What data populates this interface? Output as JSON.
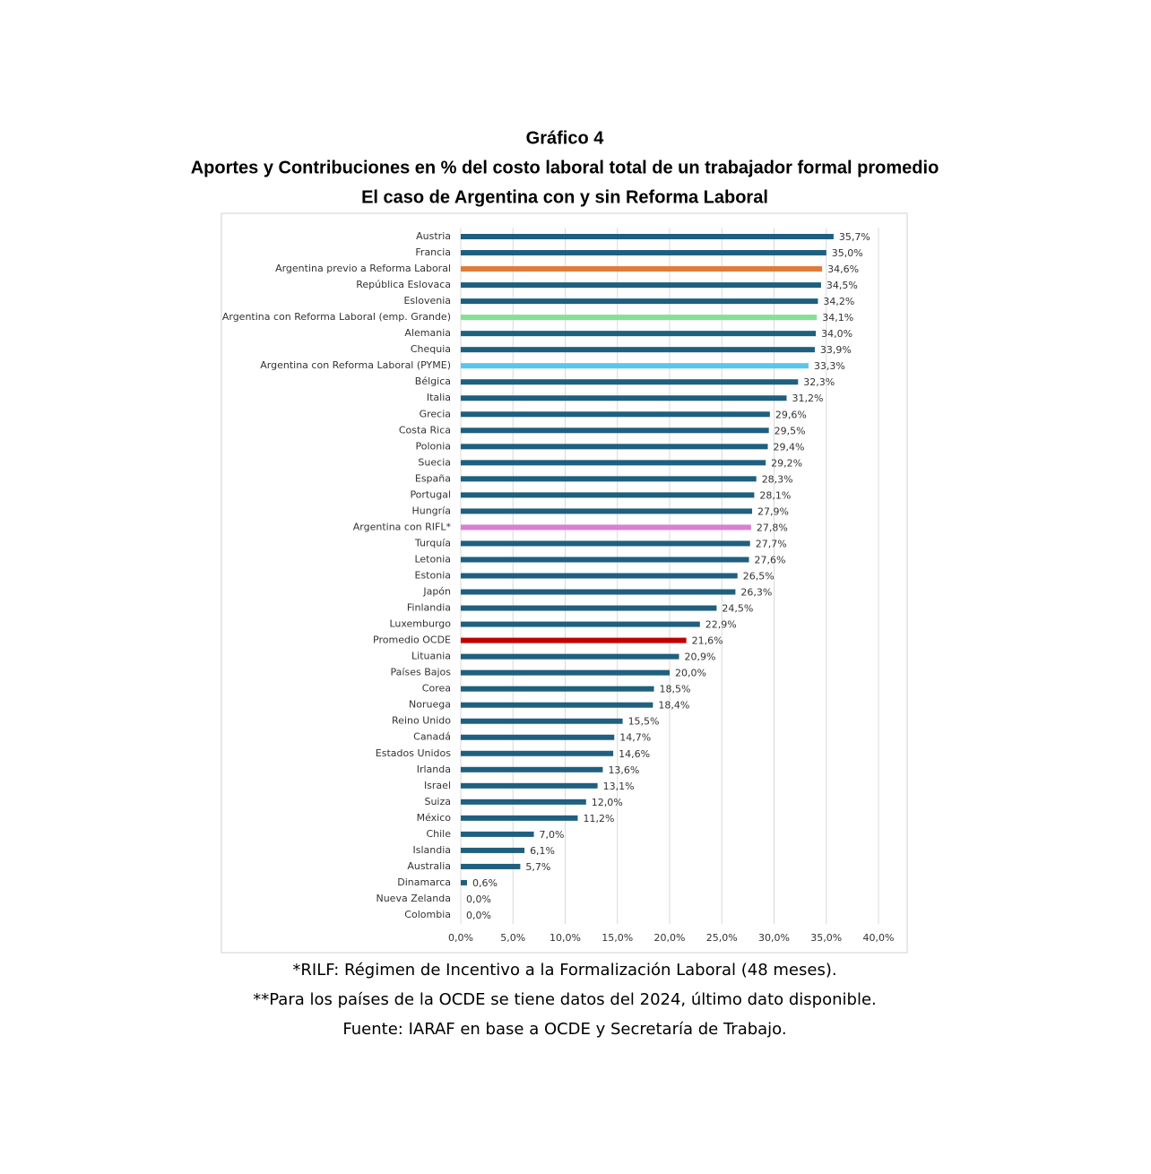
{
  "chart_data": {
    "type": "bar",
    "orientation": "horizontal",
    "title": "Gráfico 4",
    "subtitle": [
      "Aportes y Contribuciones en % del costo laboral total de un trabajador formal promedio",
      "El caso de Argentina con y sin Reforma Laboral"
    ],
    "categories": [
      "Austria",
      "Francia",
      "Argentina previo a Reforma Laboral",
      "República Eslovaca",
      "Eslovenia",
      "Argentina con Reforma Laboral (emp. Grande)",
      "Alemania",
      "Chequia",
      "Argentina con Reforma Laboral (PYME)",
      "Bélgica",
      "Italia",
      "Grecia",
      "Costa Rica",
      "Polonia",
      "Suecia",
      "España",
      "Portugal",
      "Hungría",
      "Argentina con RIFL*",
      "Turquía",
      "Letonia",
      "Estonia",
      "Japón",
      "Finlandia",
      "Luxemburgo",
      "Promedio OCDE",
      "Lituania",
      "Países Bajos",
      "Corea",
      "Noruega",
      "Reino Unido",
      "Canadá",
      "Estados Unidos",
      "Irlanda",
      "Israel",
      "Suiza",
      "México",
      "Chile",
      "Islandia",
      "Australia",
      "Dinamarca",
      "Nueva Zelanda",
      "Colombia"
    ],
    "values": [
      35.7,
      35.0,
      34.6,
      34.5,
      34.2,
      34.1,
      34.0,
      33.9,
      33.3,
      32.3,
      31.2,
      29.6,
      29.5,
      29.4,
      29.2,
      28.3,
      28.1,
      27.9,
      27.8,
      27.7,
      27.6,
      26.5,
      26.3,
      24.5,
      22.9,
      21.6,
      20.9,
      20.0,
      18.5,
      18.4,
      15.5,
      14.7,
      14.6,
      13.6,
      13.1,
      12.0,
      11.2,
      7.0,
      6.1,
      5.7,
      0.6,
      0.0,
      0.0
    ],
    "value_labels": [
      "35,7%",
      "35,0%",
      "34,6%",
      "34,5%",
      "34,2%",
      "34,1%",
      "34,0%",
      "33,9%",
      "33,3%",
      "32,3%",
      "31,2%",
      "29,6%",
      "29,5%",
      "29,4%",
      "29,2%",
      "28,3%",
      "28,1%",
      "27,9%",
      "27,8%",
      "27,7%",
      "27,6%",
      "26,5%",
      "26,3%",
      "24,5%",
      "22,9%",
      "21,6%",
      "20,9%",
      "20,0%",
      "18,5%",
      "18,4%",
      "15,5%",
      "14,7%",
      "14,6%",
      "13,6%",
      "13,1%",
      "12,0%",
      "11,2%",
      "7,0%",
      "6,1%",
      "5,7%",
      "0,6%",
      "0,0%",
      "0,0%"
    ],
    "colors": [
      "#1f5f7f",
      "#1f5f7f",
      "#e07b39",
      "#1f5f7f",
      "#1f5f7f",
      "#86df95",
      "#1f5f7f",
      "#1f5f7f",
      "#5bc4ec",
      "#1f5f7f",
      "#1f5f7f",
      "#1f5f7f",
      "#1f5f7f",
      "#1f5f7f",
      "#1f5f7f",
      "#1f5f7f",
      "#1f5f7f",
      "#1f5f7f",
      "#d97fd4",
      "#1f5f7f",
      "#1f5f7f",
      "#1f5f7f",
      "#1f5f7f",
      "#1f5f7f",
      "#1f5f7f",
      "#c00000",
      "#1f5f7f",
      "#1f5f7f",
      "#1f5f7f",
      "#1f5f7f",
      "#1f5f7f",
      "#1f5f7f",
      "#1f5f7f",
      "#1f5f7f",
      "#1f5f7f",
      "#1f5f7f",
      "#1f5f7f",
      "#1f5f7f",
      "#1f5f7f",
      "#1f5f7f",
      "#1f5f7f",
      "#1f5f7f",
      "#1f5f7f"
    ],
    "xlim": [
      0,
      40
    ],
    "xticks": [
      {
        "value": 0,
        "label": "0,0%"
      },
      {
        "value": 5,
        "label": "5,0%"
      },
      {
        "value": 10,
        "label": "10,0%"
      },
      {
        "value": 15,
        "label": "15,0%"
      },
      {
        "value": 20,
        "label": "20,0%"
      },
      {
        "value": 25,
        "label": "25,0%"
      },
      {
        "value": 30,
        "label": "30,0%"
      },
      {
        "value": 35,
        "label": "35,0%"
      },
      {
        "value": 40,
        "label": "40,0%"
      }
    ],
    "grid": true,
    "notes": [
      "*RILF: Régimen de Incentivo a la Formalización Laboral (48 meses).",
      "**Para los países de la OCDE se tiene datos del 2024, último dato disponible.",
      "Fuente: IARAF en base a OCDE y Secretaría de Trabajo."
    ]
  }
}
